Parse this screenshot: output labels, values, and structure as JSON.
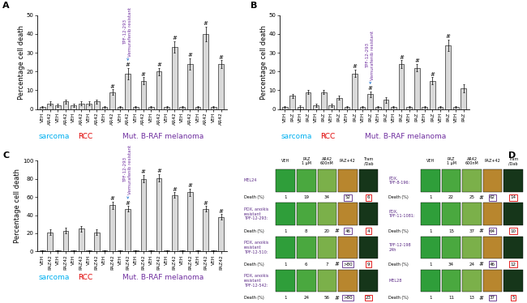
{
  "chart_data": [
    {
      "type": "bar",
      "panel": "A",
      "y_label": "Percentage cell death",
      "color": "#d9d9d9",
      "categories": [
        "VEH",
        "AR42",
        "VEH",
        "AR42",
        "VEH",
        "AR42",
        "VEH",
        "AR42",
        "VEH",
        "AR42",
        "VEH",
        "AR42",
        "VEH",
        "AR42",
        "VEH",
        "AR42",
        "VEH",
        "AR42",
        "VEH",
        "AR42",
        "VEH",
        "AR42",
        "VEH",
        "AR42"
      ],
      "values": [
        1,
        3,
        2,
        4,
        2,
        3,
        3,
        4,
        1,
        9,
        1,
        19,
        1,
        15,
        1,
        20,
        1,
        33,
        1,
        24,
        1,
        40,
        1,
        24
      ],
      "errors": [
        0.5,
        1,
        1,
        1,
        1,
        1,
        1,
        1,
        0.5,
        1.5,
        0.5,
        3,
        0.5,
        2,
        0.5,
        2,
        0.5,
        3,
        0.5,
        3,
        0.5,
        4,
        0.5,
        2
      ],
      "significance": [
        null,
        null,
        null,
        null,
        null,
        null,
        null,
        null,
        null,
        "#",
        null,
        "#",
        null,
        "#",
        null,
        "#",
        null,
        "#",
        null,
        "#",
        null,
        "#",
        null,
        "#"
      ],
      "groups": [
        {
          "name": "sarcoma",
          "count": 4,
          "color": "#00b0f0"
        },
        {
          "name": "RCC",
          "count": 4,
          "color": "#e00000"
        },
        {
          "name": "Mut. B-RAF melanoma",
          "count": 16,
          "color": "#7030a0"
        }
      ],
      "annotation": {
        "text": "TPF-12-293\nVemurafenib resistant",
        "index": 11,
        "color": "#7030a0"
      },
      "ylim": [
        0,
        50
      ],
      "yticks": [
        0,
        10,
        20,
        30,
        40,
        50
      ]
    },
    {
      "type": "bar",
      "panel": "B",
      "y_label": "Percentage cell death",
      "color": "#d9d9d9",
      "categories": [
        "VEH",
        "PAZ",
        "VEH",
        "PAZ",
        "VEH",
        "PAZ",
        "VEH",
        "PAZ",
        "VEH",
        "PAZ",
        "VEH",
        "PAZ",
        "VEH",
        "PAZ",
        "VEH",
        "PAZ",
        "VEH",
        "PAZ",
        "VEH",
        "PAZ",
        "VEH",
        "PAZ",
        "VEH",
        "PAZ"
      ],
      "values": [
        1,
        7,
        1,
        9,
        2,
        9,
        2,
        6,
        1,
        19,
        1,
        8,
        1,
        5,
        1,
        24,
        1,
        22,
        1,
        15,
        1,
        34,
        1,
        11
      ],
      "errors": [
        0.5,
        1,
        1,
        1,
        1,
        1,
        1,
        1,
        0.5,
        2,
        0.5,
        1.5,
        0.5,
        1.5,
        0.5,
        2,
        0.5,
        2,
        0.5,
        2,
        0.5,
        3,
        0.5,
        2
      ],
      "significance": [
        null,
        null,
        null,
        null,
        null,
        null,
        null,
        null,
        null,
        "#",
        null,
        "#",
        null,
        null,
        null,
        "#",
        null,
        "#",
        null,
        "#",
        null,
        "#",
        null,
        null
      ],
      "groups": [
        {
          "name": "sarcoma",
          "count": 4,
          "color": "#00b0f0"
        },
        {
          "name": "RCC",
          "count": 4,
          "color": "#e00000"
        },
        {
          "name": "Mut. B-RAF melanoma",
          "count": 16,
          "color": "#7030a0"
        }
      ],
      "annotation": {
        "text": "TPF-12-293\nVemurafenib resistant",
        "index": 11,
        "color": "#7030a0"
      },
      "ylim": [
        0,
        50
      ],
      "yticks": [
        0,
        10,
        20,
        30,
        40,
        50
      ]
    },
    {
      "type": "bar",
      "panel": "C",
      "y_label": "Percentage cell death",
      "color": "#d9d9d9",
      "categories": [
        "VEH",
        "PAZ42",
        "VEH",
        "PAZ42",
        "VEH",
        "PAZ42",
        "VEH",
        "PAZ42",
        "VEH",
        "PAZ42",
        "VEH",
        "PAZ42",
        "VEH",
        "PAZ42",
        "VEH",
        "PAZ42",
        "VEH",
        "PAZ42",
        "VEH",
        "PAZ42",
        "VEH",
        "PAZ42",
        "VEH",
        "PAZ42"
      ],
      "values": [
        1,
        21,
        1,
        23,
        1,
        25,
        1,
        21,
        1,
        51,
        1,
        47,
        1,
        80,
        1,
        81,
        1,
        62,
        1,
        65,
        1,
        47,
        1,
        38
      ],
      "errors": [
        0.5,
        3,
        0.5,
        3,
        0.5,
        3,
        0.5,
        3,
        0.5,
        4,
        0.5,
        3,
        0.5,
        4,
        0.5,
        4,
        0.5,
        3,
        0.5,
        4,
        0.5,
        3,
        0.5,
        3
      ],
      "significance": [
        null,
        null,
        null,
        null,
        null,
        null,
        null,
        null,
        null,
        "#",
        null,
        "#",
        null,
        "#",
        null,
        "#",
        null,
        "#",
        null,
        "#",
        null,
        "#",
        null,
        "#"
      ],
      "groups": [
        {
          "name": "sarcoma",
          "count": 4,
          "color": "#00b0f0"
        },
        {
          "name": "RCC",
          "count": 4,
          "color": "#e00000"
        },
        {
          "name": "Mut. B-RAF melanoma",
          "count": 16,
          "color": "#7030a0"
        }
      ],
      "annotation": {
        "text": "TPF-12-293\nVemurafenib resistant",
        "index": 11,
        "color": "#7030a0"
      },
      "ylim": [
        0,
        100
      ],
      "yticks": [
        0,
        20,
        40,
        60,
        80,
        100
      ]
    }
  ],
  "panel_d": {
    "panel": "D",
    "death_label": "Death (%)",
    "grids": [
      {
        "headers": [
          "VEH",
          "PAZ\n1 µM",
          "AR42\n600nM",
          "PAZ+42",
          "Tram\n/Dab"
        ],
        "rows": [
          {
            "label": "MEL24",
            "death": [
              "1",
              "19",
              "34",
              "52",
              "6"
            ],
            "marks": [
              null,
              null,
              null,
              null,
              null
            ]
          },
          {
            "label": "PDX, anoikis\nresistant\nTPF-12-293:",
            "death": [
              "1",
              "8",
              "20",
              "46",
              "4"
            ],
            "marks": [
              null,
              null,
              null,
              "#",
              null
            ]
          },
          {
            "label": "PDX, anoikis\nresistant\nTPF-12-510:",
            "death": [
              "1",
              "6",
              "7",
              ">80",
              "9"
            ],
            "marks": [
              null,
              null,
              null,
              "#",
              null
            ]
          },
          {
            "label": "PDX, anoikis\nresistant\nTPF-12-542:",
            "death": [
              "1",
              "24",
              "56",
              ">80",
              "23"
            ],
            "marks": [
              null,
              null,
              null,
              "#",
              null
            ]
          }
        ]
      },
      {
        "headers": [
          "VEH",
          "PAZ\n1 µM",
          "AR42\n600nM",
          "PAZ+42",
          "Tram\n/Dab"
        ],
        "rows": [
          {
            "label": "PDX,\nTPF-8-196:",
            "death": [
              "1",
              "22",
              "25",
              "62",
              "14"
            ],
            "marks": [
              null,
              null,
              null,
              "#",
              null
            ]
          },
          {
            "label": "PDX,\nTPF-11-1081:",
            "death": [
              "1",
              "15",
              "37",
              "64",
              "10"
            ],
            "marks": [
              null,
              null,
              null,
              "#",
              null
            ]
          },
          {
            "label": "TPF-12-198\n24h",
            "death": [
              "1",
              "34",
              "24",
              "46",
              "12"
            ],
            "marks": [
              null,
              null,
              null,
              "#",
              null
            ]
          },
          {
            "label": "MEL28",
            "death": [
              "1",
              "11",
              "13",
              "37",
              "5"
            ],
            "marks": [
              null,
              null,
              null,
              "#",
              null
            ]
          }
        ]
      }
    ]
  }
}
